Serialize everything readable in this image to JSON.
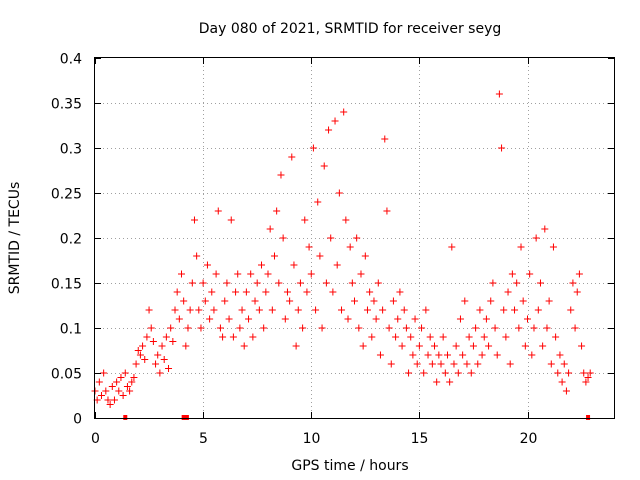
{
  "chart_data": {
    "type": "scatter",
    "title": "Day 080 of 2021, SRMTID for receiver seyg",
    "xlabel": "GPS time / hours",
    "ylabel": "SRMTID / TECUs",
    "xlim": [
      0,
      24
    ],
    "ylim": [
      0,
      0.4
    ],
    "xticks": [
      0,
      5,
      10,
      15,
      20
    ],
    "xtick_labels": [
      "0",
      "5",
      "10",
      "15",
      "20"
    ],
    "yticks": [
      0,
      0.05,
      0.1,
      0.15,
      0.2,
      0.25,
      0.3,
      0.35,
      0.4
    ],
    "ytick_labels": [
      "0",
      "0.05",
      "0.1",
      "0.15",
      "0.2",
      "0.25",
      "0.3",
      "0.35",
      "0.4"
    ],
    "grid": true,
    "marker": "+",
    "color": "#ff0000",
    "series": [
      {
        "name": "SRMTID",
        "points": [
          [
            0.0,
            0.03
          ],
          [
            0.1,
            0.02
          ],
          [
            0.2,
            0.04
          ],
          [
            0.3,
            0.025
          ],
          [
            0.4,
            0.05
          ],
          [
            0.5,
            0.03
          ],
          [
            0.6,
            0.02
          ],
          [
            0.7,
            0.015
          ],
          [
            0.8,
            0.035
          ],
          [
            0.9,
            0.02
          ],
          [
            1.0,
            0.04
          ],
          [
            1.1,
            0.03
          ],
          [
            1.2,
            0.045
          ],
          [
            1.3,
            0.025
          ],
          [
            1.4,
            0.05
          ],
          [
            1.5,
            0.035
          ],
          [
            1.6,
            0.03
          ],
          [
            1.7,
            0.04
          ],
          [
            1.8,
            0.045
          ],
          [
            1.9,
            0.06
          ],
          [
            2.0,
            0.075
          ],
          [
            2.1,
            0.07
          ],
          [
            2.2,
            0.08
          ],
          [
            2.3,
            0.065
          ],
          [
            2.4,
            0.09
          ],
          [
            2.5,
            0.12
          ],
          [
            2.6,
            0.1
          ],
          [
            2.7,
            0.085
          ],
          [
            2.8,
            0.06
          ],
          [
            2.9,
            0.07
          ],
          [
            3.0,
            0.05
          ],
          [
            3.1,
            0.08
          ],
          [
            3.2,
            0.065
          ],
          [
            3.3,
            0.09
          ],
          [
            3.4,
            0.055
          ],
          [
            3.5,
            0.1
          ],
          [
            3.6,
            0.085
          ],
          [
            3.7,
            0.12
          ],
          [
            3.8,
            0.14
          ],
          [
            3.9,
            0.11
          ],
          [
            4.0,
            0.16
          ],
          [
            4.1,
            0.13
          ],
          [
            4.2,
            0.08
          ],
          [
            4.3,
            0.1
          ],
          [
            4.4,
            0.12
          ],
          [
            4.5,
            0.15
          ],
          [
            4.6,
            0.22
          ],
          [
            4.7,
            0.18
          ],
          [
            4.8,
            0.12
          ],
          [
            4.9,
            0.1
          ],
          [
            5.0,
            0.15
          ],
          [
            5.1,
            0.13
          ],
          [
            5.2,
            0.17
          ],
          [
            5.3,
            0.11
          ],
          [
            5.4,
            0.14
          ],
          [
            5.5,
            0.12
          ],
          [
            5.6,
            0.16
          ],
          [
            5.7,
            0.23
          ],
          [
            5.8,
            0.1
          ],
          [
            5.9,
            0.09
          ],
          [
            6.0,
            0.13
          ],
          [
            6.1,
            0.15
          ],
          [
            6.2,
            0.11
          ],
          [
            6.3,
            0.22
          ],
          [
            6.4,
            0.09
          ],
          [
            6.5,
            0.14
          ],
          [
            6.6,
            0.16
          ],
          [
            6.7,
            0.1
          ],
          [
            6.8,
            0.12
          ],
          [
            6.9,
            0.08
          ],
          [
            7.0,
            0.14
          ],
          [
            7.1,
            0.11
          ],
          [
            7.2,
            0.16
          ],
          [
            7.3,
            0.09
          ],
          [
            7.4,
            0.13
          ],
          [
            7.5,
            0.15
          ],
          [
            7.6,
            0.12
          ],
          [
            7.7,
            0.17
          ],
          [
            7.8,
            0.1
          ],
          [
            7.9,
            0.14
          ],
          [
            8.0,
            0.16
          ],
          [
            8.1,
            0.21
          ],
          [
            8.2,
            0.12
          ],
          [
            8.3,
            0.18
          ],
          [
            8.4,
            0.23
          ],
          [
            8.5,
            0.15
          ],
          [
            8.6,
            0.27
          ],
          [
            8.7,
            0.2
          ],
          [
            8.8,
            0.11
          ],
          [
            8.9,
            0.14
          ],
          [
            9.0,
            0.13
          ],
          [
            9.1,
            0.29
          ],
          [
            9.2,
            0.17
          ],
          [
            9.3,
            0.08
          ],
          [
            9.4,
            0.12
          ],
          [
            9.5,
            0.15
          ],
          [
            9.6,
            0.1
          ],
          [
            9.7,
            0.22
          ],
          [
            9.8,
            0.14
          ],
          [
            9.9,
            0.19
          ],
          [
            10.0,
            0.16
          ],
          [
            10.1,
            0.3
          ],
          [
            10.2,
            0.12
          ],
          [
            10.3,
            0.24
          ],
          [
            10.4,
            0.18
          ],
          [
            10.5,
            0.1
          ],
          [
            10.6,
            0.28
          ],
          [
            10.7,
            0.15
          ],
          [
            10.8,
            0.32
          ],
          [
            10.9,
            0.2
          ],
          [
            11.0,
            0.14
          ],
          [
            11.1,
            0.33
          ],
          [
            11.2,
            0.17
          ],
          [
            11.3,
            0.25
          ],
          [
            11.4,
            0.12
          ],
          [
            11.5,
            0.34
          ],
          [
            11.6,
            0.22
          ],
          [
            11.7,
            0.11
          ],
          [
            11.8,
            0.19
          ],
          [
            11.9,
            0.15
          ],
          [
            12.0,
            0.13
          ],
          [
            12.1,
            0.2
          ],
          [
            12.2,
            0.1
          ],
          [
            12.3,
            0.16
          ],
          [
            12.4,
            0.08
          ],
          [
            12.5,
            0.18
          ],
          [
            12.6,
            0.12
          ],
          [
            12.7,
            0.14
          ],
          [
            12.8,
            0.09
          ],
          [
            12.9,
            0.13
          ],
          [
            13.0,
            0.11
          ],
          [
            13.1,
            0.15
          ],
          [
            13.2,
            0.07
          ],
          [
            13.3,
            0.12
          ],
          [
            13.4,
            0.31
          ],
          [
            13.5,
            0.23
          ],
          [
            13.6,
            0.1
          ],
          [
            13.7,
            0.06
          ],
          [
            13.8,
            0.13
          ],
          [
            13.9,
            0.09
          ],
          [
            14.0,
            0.11
          ],
          [
            14.1,
            0.14
          ],
          [
            14.2,
            0.08
          ],
          [
            14.3,
            0.12
          ],
          [
            14.4,
            0.1
          ],
          [
            14.5,
            0.05
          ],
          [
            14.6,
            0.09
          ],
          [
            14.7,
            0.07
          ],
          [
            14.8,
            0.11
          ],
          [
            14.9,
            0.06
          ],
          [
            15.0,
            0.08
          ],
          [
            15.1,
            0.1
          ],
          [
            15.2,
            0.05
          ],
          [
            15.3,
            0.12
          ],
          [
            15.4,
            0.07
          ],
          [
            15.5,
            0.09
          ],
          [
            15.6,
            0.06
          ],
          [
            15.7,
            0.08
          ],
          [
            15.8,
            0.04
          ],
          [
            15.9,
            0.07
          ],
          [
            16.0,
            0.06
          ],
          [
            16.1,
            0.09
          ],
          [
            16.2,
            0.05
          ],
          [
            16.3,
            0.07
          ],
          [
            16.4,
            0.04
          ],
          [
            16.5,
            0.19
          ],
          [
            16.6,
            0.06
          ],
          [
            16.7,
            0.08
          ],
          [
            16.8,
            0.05
          ],
          [
            16.9,
            0.11
          ],
          [
            17.0,
            0.07
          ],
          [
            17.1,
            0.13
          ],
          [
            17.2,
            0.06
          ],
          [
            17.3,
            0.09
          ],
          [
            17.4,
            0.05
          ],
          [
            17.5,
            0.08
          ],
          [
            17.6,
            0.1
          ],
          [
            17.7,
            0.06
          ],
          [
            17.8,
            0.12
          ],
          [
            17.9,
            0.07
          ],
          [
            18.0,
            0.09
          ],
          [
            18.1,
            0.11
          ],
          [
            18.2,
            0.08
          ],
          [
            18.3,
            0.13
          ],
          [
            18.4,
            0.15
          ],
          [
            18.5,
            0.1
          ],
          [
            18.6,
            0.07
          ],
          [
            18.7,
            0.36
          ],
          [
            18.8,
            0.3
          ],
          [
            18.9,
            0.12
          ],
          [
            19.0,
            0.09
          ],
          [
            19.1,
            0.14
          ],
          [
            19.2,
            0.06
          ],
          [
            19.3,
            0.16
          ],
          [
            19.4,
            0.12
          ],
          [
            19.5,
            0.15
          ],
          [
            19.6,
            0.1
          ],
          [
            19.7,
            0.19
          ],
          [
            19.8,
            0.13
          ],
          [
            19.9,
            0.08
          ],
          [
            20.0,
            0.11
          ],
          [
            20.1,
            0.16
          ],
          [
            20.2,
            0.07
          ],
          [
            20.3,
            0.1
          ],
          [
            20.4,
            0.2
          ],
          [
            20.5,
            0.12
          ],
          [
            20.6,
            0.15
          ],
          [
            20.7,
            0.08
          ],
          [
            20.8,
            0.21
          ],
          [
            20.9,
            0.1
          ],
          [
            21.0,
            0.13
          ],
          [
            21.1,
            0.06
          ],
          [
            21.2,
            0.19
          ],
          [
            21.3,
            0.09
          ],
          [
            21.4,
            0.05
          ],
          [
            21.5,
            0.07
          ],
          [
            21.6,
            0.04
          ],
          [
            21.7,
            0.06
          ],
          [
            21.8,
            0.03
          ],
          [
            21.9,
            0.05
          ],
          [
            22.0,
            0.12
          ],
          [
            22.1,
            0.15
          ],
          [
            22.2,
            0.1
          ],
          [
            22.3,
            0.14
          ],
          [
            22.4,
            0.16
          ],
          [
            22.5,
            0.08
          ],
          [
            22.6,
            0.05
          ],
          [
            22.7,
            0.04
          ],
          [
            22.8,
            0.045
          ],
          [
            22.9,
            0.05
          ]
        ]
      }
    ],
    "gap_markers": [
      1.4,
      4.1,
      4.25,
      22.8
    ]
  }
}
